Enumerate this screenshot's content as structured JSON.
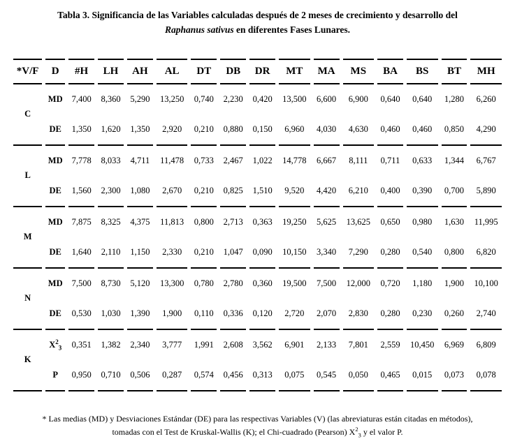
{
  "colors": {
    "text": "#000000",
    "background": "#ffffff",
    "rule": "#000000"
  },
  "title": {
    "line1": "Tabla 3. Significancia de las Variables calculadas después de 2 meses de crecimiento y desarrollo del",
    "line2_italic": "Raphanus sativus",
    "line2_rest": " en diferentes Fases Lunares."
  },
  "table": {
    "headers": [
      "*V/F",
      "D",
      "#H",
      "LH",
      "AH",
      "AL",
      "DT",
      "DB",
      "DR",
      "MT",
      "MA",
      "MS",
      "BA",
      "BS",
      "BT",
      "MH"
    ],
    "groups": [
      {
        "label": "C",
        "rows": [
          {
            "stat": {
              "base": "MD"
            },
            "values": [
              "7,400",
              "8,360",
              "5,290",
              "13,250",
              "0,740",
              "2,230",
              "0,420",
              "13,500",
              "6,600",
              "6,900",
              "0,640",
              "0,640",
              "1,280",
              "6,260"
            ]
          },
          {
            "stat": {
              "base": "DE"
            },
            "values": [
              "1,350",
              "1,620",
              "1,350",
              "2,920",
              "0,210",
              "0,880",
              "0,150",
              "6,960",
              "4,030",
              "4,630",
              "0,460",
              "0,460",
              "0,850",
              "4,290"
            ]
          }
        ]
      },
      {
        "label": "L",
        "rows": [
          {
            "stat": {
              "base": "MD"
            },
            "values": [
              "7,778",
              "8,033",
              "4,711",
              "11,478",
              "0,733",
              "2,467",
              "1,022",
              "14,778",
              "6,667",
              "8,111",
              "0,711",
              "0,633",
              "1,344",
              "6,767"
            ]
          },
          {
            "stat": {
              "base": "DE"
            },
            "values": [
              "1,560",
              "2,300",
              "1,080",
              "2,670",
              "0,210",
              "0,825",
              "1,510",
              "9,520",
              "4,420",
              "6,210",
              "0,400",
              "0,390",
              "0,700",
              "5,890"
            ]
          }
        ]
      },
      {
        "label": "M",
        "rows": [
          {
            "stat": {
              "base": "MD"
            },
            "values": [
              "7,875",
              "8,325",
              "4,375",
              "11,813",
              "0,800",
              "2,713",
              "0,363",
              "19,250",
              "5,625",
              "13,625",
              "0,650",
              "0,980",
              "1,630",
              "11,995"
            ]
          },
          {
            "stat": {
              "base": "DE"
            },
            "values": [
              "1,640",
              "2,110",
              "1,150",
              "2,330",
              "0,210",
              "1,047",
              "0,090",
              "10,150",
              "3,340",
              "7,290",
              "0,280",
              "0,540",
              "0,800",
              "6,820"
            ]
          }
        ]
      },
      {
        "label": "N",
        "rows": [
          {
            "stat": {
              "base": "MD"
            },
            "values": [
              "7,500",
              "8,730",
              "5,120",
              "13,300",
              "0,780",
              "2,780",
              "0,360",
              "19,500",
              "7,500",
              "12,000",
              "0,720",
              "1,180",
              "1,900",
              "10,100"
            ]
          },
          {
            "stat": {
              "base": "DE"
            },
            "values": [
              "0,530",
              "1,030",
              "1,390",
              "1,900",
              "0,110",
              "0,336",
              "0,120",
              "2,720",
              "2,070",
              "2,830",
              "0,280",
              "0,230",
              "0,260",
              "2,740"
            ]
          }
        ]
      },
      {
        "label": "K",
        "rows": [
          {
            "stat": {
              "base": "X",
              "sup": "2",
              "sub": "3"
            },
            "values": [
              "0,351",
              "1,382",
              "2,340",
              "3,777",
              "1,991",
              "2,608",
              "3,562",
              "6,901",
              "2,133",
              "7,801",
              "2,559",
              "10,450",
              "6,969",
              "6,809"
            ]
          },
          {
            "stat": {
              "base": "P"
            },
            "values": [
              "0,950",
              "0,710",
              "0,506",
              "0,287",
              "0,574",
              "0,456",
              "0,313",
              "0,075",
              "0,545",
              "0,050",
              "0,465",
              "0,015",
              "0,073",
              "0,078"
            ]
          }
        ]
      }
    ]
  },
  "footnote": {
    "line1": "* Las medias (MD) y Desviaciones Estándar (DE) para las respectivas Variables (V) (las abreviaturas están citadas en métodos),",
    "line2_pre": "tomadas con el Test de Kruskal-Wallis (K); el Chi-cuadrado (Pearson) X",
    "line2_sup": "2",
    "line2_sub": "3",
    "line2_post": " y el valor P."
  }
}
